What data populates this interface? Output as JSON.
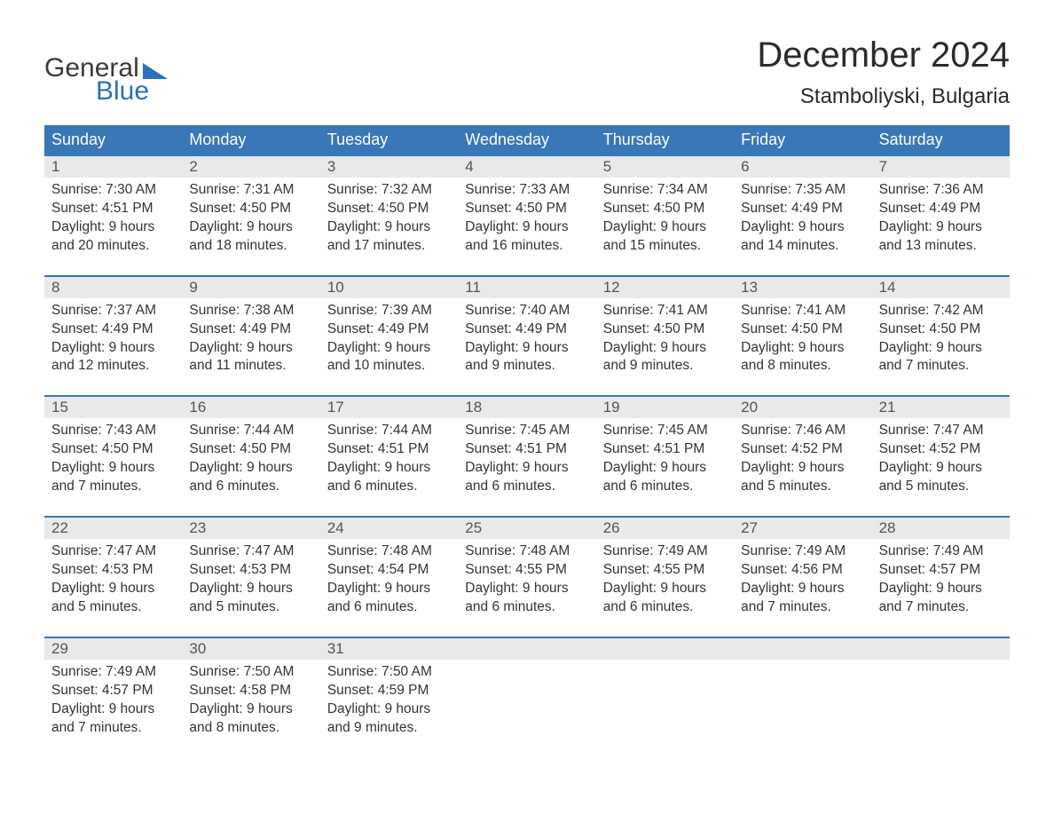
{
  "logo": {
    "word1": "General",
    "word2": "Blue",
    "word1_color": "#3a3a3a",
    "word2_color": "#2a71b8",
    "triangle_color": "#2a71b8"
  },
  "title": "December 2024",
  "location": "Stamboliyski, Bulgaria",
  "colors": {
    "header_bg": "#3a77b6",
    "header_text": "#ffffff",
    "week_border": "#3a77b6",
    "daynum_bg": "#e9e9e9",
    "daynum_text": "#555555",
    "body_text": "#333333",
    "background": "#ffffff"
  },
  "typography": {
    "title_fontsize": 40,
    "location_fontsize": 24,
    "header_fontsize": 18,
    "daynum_fontsize": 17,
    "cell_fontsize": 15.5,
    "logo_fontsize": 30
  },
  "day_names": [
    "Sunday",
    "Monday",
    "Tuesday",
    "Wednesday",
    "Thursday",
    "Friday",
    "Saturday"
  ],
  "weeks": [
    [
      {
        "day": "1",
        "sunrise": "Sunrise: 7:30 AM",
        "sunset": "Sunset: 4:51 PM",
        "dl1": "Daylight: 9 hours",
        "dl2": "and 20 minutes."
      },
      {
        "day": "2",
        "sunrise": "Sunrise: 7:31 AM",
        "sunset": "Sunset: 4:50 PM",
        "dl1": "Daylight: 9 hours",
        "dl2": "and 18 minutes."
      },
      {
        "day": "3",
        "sunrise": "Sunrise: 7:32 AM",
        "sunset": "Sunset: 4:50 PM",
        "dl1": "Daylight: 9 hours",
        "dl2": "and 17 minutes."
      },
      {
        "day": "4",
        "sunrise": "Sunrise: 7:33 AM",
        "sunset": "Sunset: 4:50 PM",
        "dl1": "Daylight: 9 hours",
        "dl2": "and 16 minutes."
      },
      {
        "day": "5",
        "sunrise": "Sunrise: 7:34 AM",
        "sunset": "Sunset: 4:50 PM",
        "dl1": "Daylight: 9 hours",
        "dl2": "and 15 minutes."
      },
      {
        "day": "6",
        "sunrise": "Sunrise: 7:35 AM",
        "sunset": "Sunset: 4:49 PM",
        "dl1": "Daylight: 9 hours",
        "dl2": "and 14 minutes."
      },
      {
        "day": "7",
        "sunrise": "Sunrise: 7:36 AM",
        "sunset": "Sunset: 4:49 PM",
        "dl1": "Daylight: 9 hours",
        "dl2": "and 13 minutes."
      }
    ],
    [
      {
        "day": "8",
        "sunrise": "Sunrise: 7:37 AM",
        "sunset": "Sunset: 4:49 PM",
        "dl1": "Daylight: 9 hours",
        "dl2": "and 12 minutes."
      },
      {
        "day": "9",
        "sunrise": "Sunrise: 7:38 AM",
        "sunset": "Sunset: 4:49 PM",
        "dl1": "Daylight: 9 hours",
        "dl2": "and 11 minutes."
      },
      {
        "day": "10",
        "sunrise": "Sunrise: 7:39 AM",
        "sunset": "Sunset: 4:49 PM",
        "dl1": "Daylight: 9 hours",
        "dl2": "and 10 minutes."
      },
      {
        "day": "11",
        "sunrise": "Sunrise: 7:40 AM",
        "sunset": "Sunset: 4:49 PM",
        "dl1": "Daylight: 9 hours",
        "dl2": "and 9 minutes."
      },
      {
        "day": "12",
        "sunrise": "Sunrise: 7:41 AM",
        "sunset": "Sunset: 4:50 PM",
        "dl1": "Daylight: 9 hours",
        "dl2": "and 9 minutes."
      },
      {
        "day": "13",
        "sunrise": "Sunrise: 7:41 AM",
        "sunset": "Sunset: 4:50 PM",
        "dl1": "Daylight: 9 hours",
        "dl2": "and 8 minutes."
      },
      {
        "day": "14",
        "sunrise": "Sunrise: 7:42 AM",
        "sunset": "Sunset: 4:50 PM",
        "dl1": "Daylight: 9 hours",
        "dl2": "and 7 minutes."
      }
    ],
    [
      {
        "day": "15",
        "sunrise": "Sunrise: 7:43 AM",
        "sunset": "Sunset: 4:50 PM",
        "dl1": "Daylight: 9 hours",
        "dl2": "and 7 minutes."
      },
      {
        "day": "16",
        "sunrise": "Sunrise: 7:44 AM",
        "sunset": "Sunset: 4:50 PM",
        "dl1": "Daylight: 9 hours",
        "dl2": "and 6 minutes."
      },
      {
        "day": "17",
        "sunrise": "Sunrise: 7:44 AM",
        "sunset": "Sunset: 4:51 PM",
        "dl1": "Daylight: 9 hours",
        "dl2": "and 6 minutes."
      },
      {
        "day": "18",
        "sunrise": "Sunrise: 7:45 AM",
        "sunset": "Sunset: 4:51 PM",
        "dl1": "Daylight: 9 hours",
        "dl2": "and 6 minutes."
      },
      {
        "day": "19",
        "sunrise": "Sunrise: 7:45 AM",
        "sunset": "Sunset: 4:51 PM",
        "dl1": "Daylight: 9 hours",
        "dl2": "and 6 minutes."
      },
      {
        "day": "20",
        "sunrise": "Sunrise: 7:46 AM",
        "sunset": "Sunset: 4:52 PM",
        "dl1": "Daylight: 9 hours",
        "dl2": "and 5 minutes."
      },
      {
        "day": "21",
        "sunrise": "Sunrise: 7:47 AM",
        "sunset": "Sunset: 4:52 PM",
        "dl1": "Daylight: 9 hours",
        "dl2": "and 5 minutes."
      }
    ],
    [
      {
        "day": "22",
        "sunrise": "Sunrise: 7:47 AM",
        "sunset": "Sunset: 4:53 PM",
        "dl1": "Daylight: 9 hours",
        "dl2": "and 5 minutes."
      },
      {
        "day": "23",
        "sunrise": "Sunrise: 7:47 AM",
        "sunset": "Sunset: 4:53 PM",
        "dl1": "Daylight: 9 hours",
        "dl2": "and 5 minutes."
      },
      {
        "day": "24",
        "sunrise": "Sunrise: 7:48 AM",
        "sunset": "Sunset: 4:54 PM",
        "dl1": "Daylight: 9 hours",
        "dl2": "and 6 minutes."
      },
      {
        "day": "25",
        "sunrise": "Sunrise: 7:48 AM",
        "sunset": "Sunset: 4:55 PM",
        "dl1": "Daylight: 9 hours",
        "dl2": "and 6 minutes."
      },
      {
        "day": "26",
        "sunrise": "Sunrise: 7:49 AM",
        "sunset": "Sunset: 4:55 PM",
        "dl1": "Daylight: 9 hours",
        "dl2": "and 6 minutes."
      },
      {
        "day": "27",
        "sunrise": "Sunrise: 7:49 AM",
        "sunset": "Sunset: 4:56 PM",
        "dl1": "Daylight: 9 hours",
        "dl2": "and 7 minutes."
      },
      {
        "day": "28",
        "sunrise": "Sunrise: 7:49 AM",
        "sunset": "Sunset: 4:57 PM",
        "dl1": "Daylight: 9 hours",
        "dl2": "and 7 minutes."
      }
    ],
    [
      {
        "day": "29",
        "sunrise": "Sunrise: 7:49 AM",
        "sunset": "Sunset: 4:57 PM",
        "dl1": "Daylight: 9 hours",
        "dl2": "and 7 minutes."
      },
      {
        "day": "30",
        "sunrise": "Sunrise: 7:50 AM",
        "sunset": "Sunset: 4:58 PM",
        "dl1": "Daylight: 9 hours",
        "dl2": "and 8 minutes."
      },
      {
        "day": "31",
        "sunrise": "Sunrise: 7:50 AM",
        "sunset": "Sunset: 4:59 PM",
        "dl1": "Daylight: 9 hours",
        "dl2": "and 9 minutes."
      },
      {
        "day": "",
        "sunrise": "",
        "sunset": "",
        "dl1": "",
        "dl2": ""
      },
      {
        "day": "",
        "sunrise": "",
        "sunset": "",
        "dl1": "",
        "dl2": ""
      },
      {
        "day": "",
        "sunrise": "",
        "sunset": "",
        "dl1": "",
        "dl2": ""
      },
      {
        "day": "",
        "sunrise": "",
        "sunset": "",
        "dl1": "",
        "dl2": ""
      }
    ]
  ]
}
